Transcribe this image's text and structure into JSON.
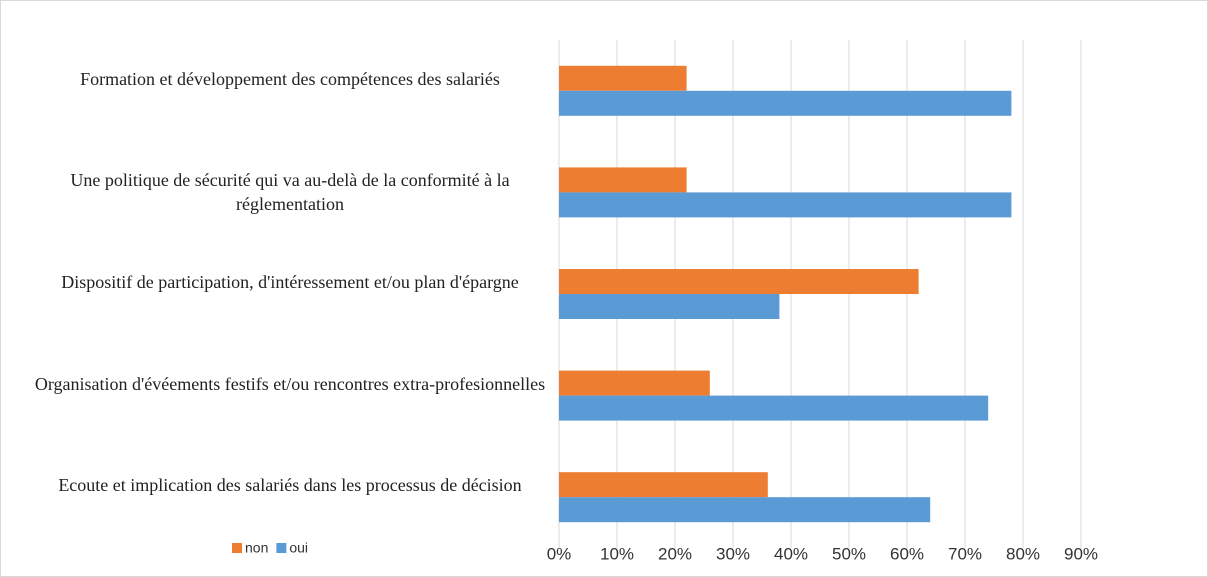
{
  "chart_data": {
    "type": "hbar",
    "categories": [
      "Formation et développement des compétences des salariés",
      "Une politique de sécurité qui va au-delà de la conformité à la réglementation",
      "Dispositif de participation, d'intéressement et/ou plan d'épargne",
      "Organisation d'évéements festifs et/ou rencontres extra-profesionnelles",
      "Ecoute et implication des salariés dans les processus de décision"
    ],
    "series": [
      {
        "name": "non",
        "color": "#ed7d31",
        "values": [
          22,
          22,
          62,
          26,
          36
        ]
      },
      {
        "name": "oui",
        "color": "#5b9bd5",
        "values": [
          78,
          78,
          38,
          74,
          64
        ]
      }
    ],
    "xlim": [
      0,
      90
    ],
    "xticks": [
      {
        "value": 0,
        "label": "0%"
      },
      {
        "value": 10,
        "label": "10%"
      },
      {
        "value": 20,
        "label": "20%"
      },
      {
        "value": 30,
        "label": "30%"
      },
      {
        "value": 40,
        "label": "40%"
      },
      {
        "value": 50,
        "label": "50%"
      },
      {
        "value": 60,
        "label": "60%"
      },
      {
        "value": 70,
        "label": "70%"
      },
      {
        "value": 80,
        "label": "80%"
      },
      {
        "value": 90,
        "label": "90%"
      }
    ],
    "grid": true,
    "legend": "bottom-left"
  }
}
